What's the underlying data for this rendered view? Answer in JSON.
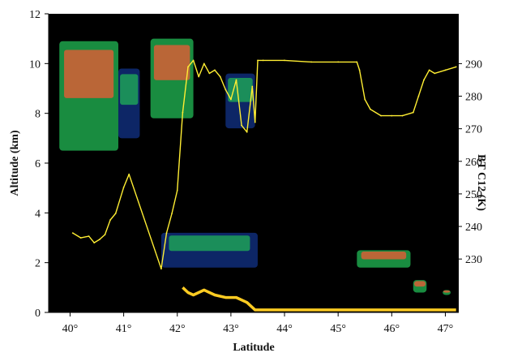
{
  "chart_data": {
    "type": "line",
    "xlabel": "Latitude",
    "ylabel_left": "Altitude (km)",
    "ylabel_right": "BT C12 (K)",
    "xlim": [
      39.6,
      47.25
    ],
    "ylim_left": [
      0,
      12
    ],
    "ylim_right": [
      213.6,
      305.3
    ],
    "x_ticks": [
      40,
      41,
      42,
      43,
      44,
      45,
      46,
      47
    ],
    "x_tick_suffix": "°",
    "y_ticks_left": [
      0,
      2,
      4,
      6,
      8,
      10,
      12
    ],
    "y_ticks_right": [
      230,
      240,
      250,
      260,
      270,
      280,
      290
    ],
    "grid": false,
    "legend": "none",
    "colors": {
      "background": "#000000",
      "bt_line": "#ffee33",
      "ground_return": "#ffcc22",
      "lidar_high": "#ff5533",
      "lidar_mid": "#22bb55",
      "lidar_low": "#113388"
    },
    "series": [
      {
        "values_unit": "K",
        "x": [
          40.05,
          40.2,
          40.35,
          40.45,
          40.55,
          40.65,
          40.75,
          40.85,
          41.0,
          41.1,
          41.7,
          41.8,
          41.9,
          42.0,
          42.1,
          42.2,
          42.3,
          42.4,
          42.5,
          42.6,
          42.7,
          42.8,
          42.9,
          43.0,
          43.1,
          43.2,
          43.3,
          43.4,
          43.45,
          43.5,
          43.6,
          44.0,
          44.5,
          45.0,
          45.35,
          45.4,
          45.5,
          45.6,
          45.8,
          46.0,
          46.2,
          46.4,
          46.5,
          46.6,
          46.7,
          46.8,
          47.0,
          47.2
        ],
        "values": [
          238,
          236.5,
          237,
          235,
          236,
          237.5,
          242,
          244,
          252,
          256,
          227,
          238,
          244,
          251,
          275,
          289,
          291,
          286,
          290,
          287,
          288,
          286,
          282,
          279,
          285,
          271,
          269,
          283,
          272,
          291,
          291,
          291,
          290.5,
          290.5,
          290.5,
          288,
          279,
          276,
          274,
          274,
          274,
          275,
          280,
          285,
          288,
          287,
          288,
          289
        ]
      }
    ],
    "lidar_layers": [
      {
        "x": [
          39.8,
          40.9
        ],
        "alt": [
          6.5,
          10.9
        ],
        "level": "high"
      },
      {
        "x": [
          40.9,
          41.3
        ],
        "alt": [
          7.0,
          9.8
        ],
        "level": "mid"
      },
      {
        "x": [
          41.5,
          42.3
        ],
        "alt": [
          7.8,
          11.0
        ],
        "level": "high"
      },
      {
        "x": [
          42.9,
          43.45
        ],
        "alt": [
          7.4,
          9.6
        ],
        "level": "mid"
      },
      {
        "x": [
          41.7,
          43.5
        ],
        "alt": [
          1.8,
          3.2
        ],
        "level": "mid"
      },
      {
        "x": [
          45.35,
          46.35
        ],
        "alt": [
          1.8,
          2.5
        ],
        "level": "high"
      },
      {
        "x": [
          46.4,
          46.65
        ],
        "alt": [
          0.8,
          1.3
        ],
        "level": "high"
      },
      {
        "x": [
          46.95,
          47.1
        ],
        "alt": [
          0.7,
          0.9
        ],
        "level": "high"
      }
    ],
    "ground_return": {
      "x": [
        42.1,
        42.2,
        42.3,
        42.5,
        42.7,
        42.9,
        43.1,
        43.3,
        43.45,
        45.3,
        45.4,
        46.4,
        47.2
      ],
      "alt": [
        1.0,
        0.8,
        0.7,
        0.9,
        0.7,
        0.6,
        0.6,
        0.4,
        0.1,
        0.1,
        0.1,
        0.1,
        0.1
      ]
    }
  }
}
